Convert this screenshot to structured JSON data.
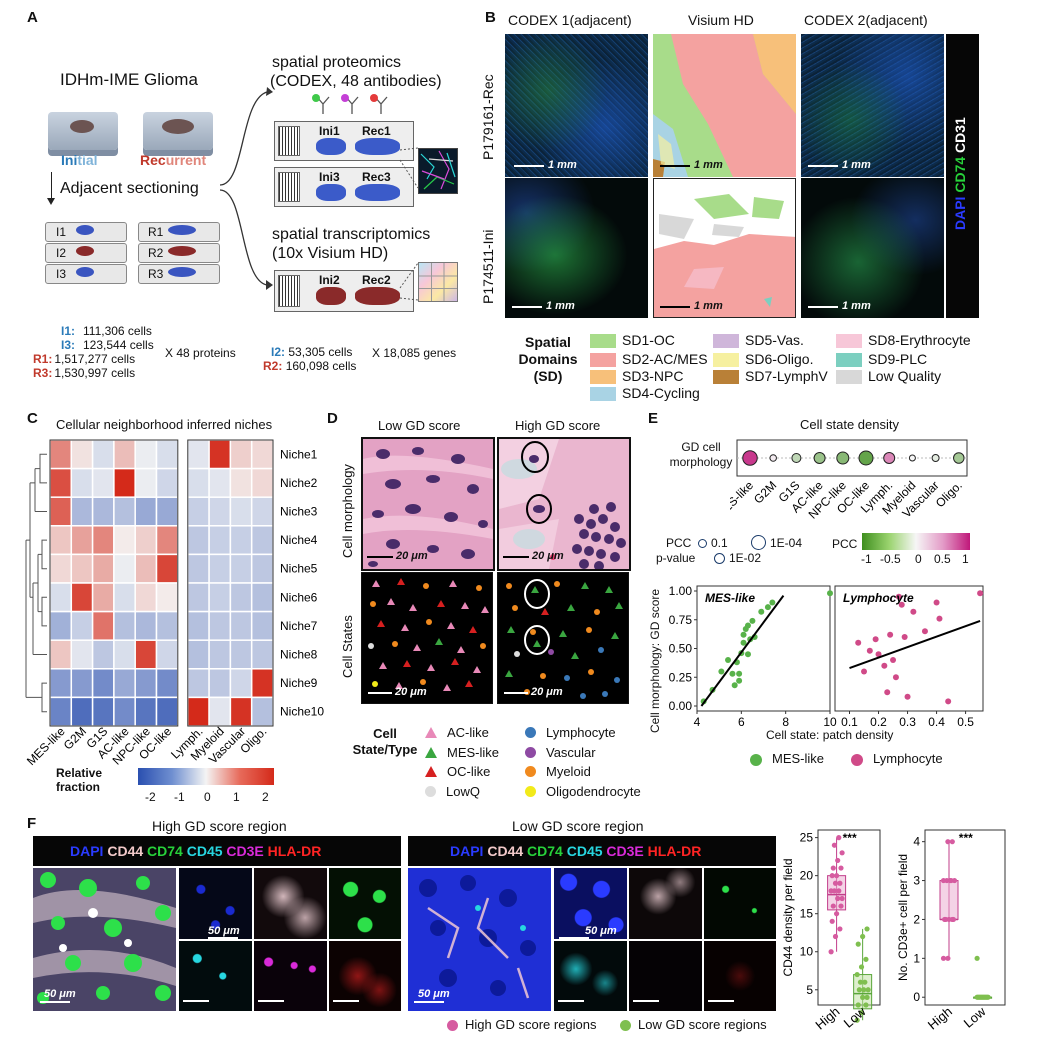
{
  "panels": {
    "a": "A",
    "b": "B",
    "c": "C",
    "d": "D",
    "e": "E",
    "f": "F"
  },
  "panelA": {
    "glioma_title": "IDHm-IME Glioma",
    "initial": {
      "part1": "Ini",
      "part2": "tial"
    },
    "recurrent": {
      "part1": "Rec",
      "part2": "urrent"
    },
    "adjacent_sectioning": "Adjacent sectioning",
    "slides_left": [
      "I1",
      "I2",
      "I3"
    ],
    "slides_right": [
      "R1",
      "R2",
      "R3"
    ],
    "proteomics_title": "spatial proteomics",
    "proteomics_sub": "(CODEX, 48 antibodies)",
    "transcriptomics_title": "spatial transcriptomics",
    "transcriptomics_sub": "(10x Visium HD)",
    "chip1": [
      "Ini1",
      "Rec1"
    ],
    "chip2": [
      "Ini3",
      "Rec3"
    ],
    "chip3": [
      "Ini2",
      "Rec2"
    ],
    "counts_left": [
      {
        "label": "I1:",
        "value": "111,306 cells",
        "color": "#2a7ab8"
      },
      {
        "label": "I3:",
        "value": "123,544 cells",
        "color": "#2a7ab8"
      },
      {
        "label": "R1:",
        "value": "1,517,277 cells",
        "color": "#c0392b"
      },
      {
        "label": "R3:",
        "value": "1,530,997 cells",
        "color": "#c0392b"
      }
    ],
    "x_proteins": "X 48 proteins",
    "counts_right": [
      {
        "label": "I2:",
        "value": "53,305 cells",
        "color": "#2a7ab8"
      },
      {
        "label": "R2:",
        "value": "160,098 cells",
        "color": "#c0392b"
      }
    ],
    "x_genes": "X 18,085 genes"
  },
  "panelB": {
    "col_titles": [
      "CODEX 1(adjacent)",
      "Visium HD",
      "CODEX 2(adjacent)"
    ],
    "row_labels": [
      "P179161-Rec",
      "P174511-Ini"
    ],
    "scale": "1 mm",
    "stain": {
      "dapi": "DAPI",
      "cd74": "CD74",
      "cd31": "CD31"
    },
    "legend_title": [
      "Spatial",
      "Domains",
      "(SD)"
    ],
    "domains": [
      {
        "label": "SD1-OC",
        "color": "#a8dc8a"
      },
      {
        "label": "SD2-AC/MES",
        "color": "#f4a2a0"
      },
      {
        "label": "SD3-NPC",
        "color": "#f7c07a"
      },
      {
        "label": "SD4-Cycling",
        "color": "#a9d3e4"
      },
      {
        "label": "SD5-Vas.",
        "color": "#cfb6da"
      },
      {
        "label": "SD6-Oligo.",
        "color": "#f6f0a0"
      },
      {
        "label": "SD7-LymphV",
        "color": "#b98037"
      },
      {
        "label": "SD8-Erythrocyte",
        "color": "#f7c7d8"
      },
      {
        "label": "SD9-PLC",
        "color": "#7ccfc0"
      },
      {
        "label": "Low Quality",
        "color": "#d8d8d8"
      }
    ]
  },
  "panelC": {
    "title": "Cellular neighborhood inferred niches",
    "niches": [
      "Niche1",
      "Niche2",
      "Niche3",
      "Niche4",
      "Niche5",
      "Niche6",
      "Niche7",
      "Niche8",
      "Niche9",
      "Niche10"
    ],
    "cols_left": [
      "MES-like",
      "G2M",
      "G1S",
      "AC-like",
      "NPC-like",
      "OC-like"
    ],
    "cols_right": [
      "Lymph.",
      "Myeloid",
      "Vascular",
      "Oligo."
    ],
    "matrix_left": [
      [
        1.2,
        0.2,
        -0.3,
        0.6,
        -0.1,
        -0.3
      ],
      [
        1.8,
        -0.3,
        -0.2,
        2.2,
        -0.1,
        -0.4
      ],
      [
        1.6,
        -0.8,
        -0.8,
        -0.7,
        -1.0,
        -1.0
      ],
      [
        0.5,
        0.9,
        1.2,
        0.1,
        0.4,
        1.2
      ],
      [
        0.3,
        0.5,
        0.8,
        -0.1,
        0.6,
        1.9
      ],
      [
        -0.3,
        1.9,
        0.8,
        -0.3,
        0.3,
        0.1
      ],
      [
        -0.9,
        -0.5,
        1.4,
        -0.7,
        -0.8,
        -0.7
      ],
      [
        0.5,
        -0.2,
        -0.6,
        -0.3,
        1.9,
        -0.4
      ],
      [
        -1.2,
        -1.2,
        -1.4,
        -1.0,
        -1.2,
        -1.4
      ],
      [
        -1.5,
        -1.8,
        -1.7,
        -1.4,
        -1.7,
        -1.8
      ]
    ],
    "matrix_right": [
      [
        -0.2,
        2.1,
        0.4,
        0.3
      ],
      [
        -0.3,
        -0.2,
        0.2,
        0.3
      ],
      [
        -0.5,
        -0.4,
        -0.3,
        -0.4
      ],
      [
        -0.6,
        -0.5,
        -0.5,
        -0.6
      ],
      [
        -0.6,
        -0.5,
        -0.5,
        -0.6
      ],
      [
        -0.6,
        -0.5,
        -0.6,
        -0.7
      ],
      [
        -0.7,
        -0.6,
        -0.6,
        -0.7
      ],
      [
        -0.7,
        -0.6,
        -0.6,
        -0.6
      ],
      [
        -0.6,
        -0.6,
        -0.4,
        2.1
      ],
      [
        2.2,
        -0.2,
        2.1,
        -0.7
      ]
    ],
    "colorbar_title": [
      "Relative",
      "fraction"
    ],
    "colorbar_ticks": [
      "-2",
      "-1",
      "0",
      "1",
      "2"
    ]
  },
  "panelD": {
    "col_titles": [
      "Low GD score",
      "High GD score"
    ],
    "row_labels": [
      "Cell morphology",
      "Cell States"
    ],
    "scale": "20 μm",
    "legend_title": [
      "Cell",
      "State/Type"
    ],
    "legend_items": [
      {
        "label": "AC-like",
        "shape": "triangle",
        "color": "#e889b8"
      },
      {
        "label": "Lymphocyte",
        "shape": "circle",
        "color": "#3a78b8"
      },
      {
        "label": "MES-like",
        "shape": "triangle",
        "color": "#3aa640"
      },
      {
        "label": "Vascular",
        "shape": "circle",
        "color": "#8e4aa3"
      },
      {
        "label": "OC-like",
        "shape": "triangle",
        "color": "#d62020"
      },
      {
        "label": "Myeloid",
        "shape": "circle",
        "color": "#f08a1e"
      },
      {
        "label": "LowQ",
        "shape": "circle",
        "color": "#dddddd"
      },
      {
        "label": "Oligodendrocyte",
        "shape": "circle",
        "color": "#f2ea1a"
      }
    ]
  },
  "panelE": {
    "title": "Cell state density",
    "row_label": [
      "GD cell",
      "morphology"
    ],
    "categories": [
      "MES-like",
      "G2M",
      "G1S",
      "AC-like",
      "NPC-like",
      "OC-like",
      "Lymph.",
      "Myeloid",
      "Vascular",
      "Oligo."
    ],
    "pcc_values": [
      0.85,
      0.05,
      -0.3,
      -0.5,
      -0.6,
      -0.8,
      0.5,
      0.0,
      -0.1,
      -0.45
    ],
    "pcc_legend": {
      "title": "PCC",
      "v1": "0.1",
      "v2": "1E-04"
    },
    "pvalue_legend": {
      "title": "p-value",
      "v1": "1E-02"
    },
    "colorbar": {
      "title": "PCC",
      "ticks": [
        "-1",
        "-0.5",
        "0",
        "0.5",
        "1"
      ]
    },
    "ylabel": "Cell morphology: GD score",
    "xlabel": "Cell state: patch density",
    "legend": [
      {
        "label": "MES-like",
        "color": "#58b24a"
      },
      {
        "label": "Lymphocyte",
        "color": "#d04a88"
      }
    ]
  },
  "chart_data": [
    {
      "type": "scatter",
      "title": "MES-like",
      "yticks": [
        "0.00",
        "0.25",
        "0.50",
        "0.75",
        "1.00"
      ],
      "xticks": [
        "4",
        "6",
        "8",
        "10"
      ],
      "xlim": [
        4,
        10
      ],
      "ylim": [
        0,
        1
      ],
      "x": [
        4.3,
        4.7,
        5.1,
        5.4,
        5.6,
        5.7,
        5.8,
        5.9,
        5.9,
        6.0,
        6.1,
        6.1,
        6.2,
        6.3,
        6.3,
        6.4,
        6.5,
        6.6,
        6.9,
        7.2,
        7.4,
        10.0
      ],
      "y": [
        0.04,
        0.14,
        0.3,
        0.4,
        0.28,
        0.18,
        0.38,
        0.28,
        0.22,
        0.46,
        0.62,
        0.55,
        0.67,
        0.7,
        0.45,
        0.58,
        0.74,
        0.6,
        0.82,
        0.86,
        0.9,
        0.98
      ],
      "fit": [
        [
          4.2,
          0.0
        ],
        [
          7.9,
          0.96
        ]
      ],
      "color": "#58b24a"
    },
    {
      "type": "scatter",
      "title": "Lymphocyte",
      "xticks": [
        "0.1",
        "0.2",
        "0.3",
        "0.4",
        "0.5"
      ],
      "xlim": [
        0.05,
        0.56
      ],
      "ylim": [
        0,
        1
      ],
      "x": [
        0.13,
        0.15,
        0.17,
        0.19,
        0.2,
        0.22,
        0.23,
        0.24,
        0.25,
        0.26,
        0.27,
        0.28,
        0.29,
        0.3,
        0.32,
        0.36,
        0.4,
        0.41,
        0.44,
        0.55
      ],
      "y": [
        0.55,
        0.3,
        0.48,
        0.58,
        0.45,
        0.35,
        0.12,
        0.62,
        0.4,
        0.25,
        0.95,
        0.88,
        0.6,
        0.08,
        0.82,
        0.65,
        0.9,
        0.76,
        0.04,
        0.98
      ],
      "fit": [
        [
          0.1,
          0.33
        ],
        [
          0.55,
          0.74
        ]
      ],
      "color": "#d04a88"
    },
    {
      "type": "box",
      "ylabel": "CD44 density per field",
      "categories": [
        "High",
        "Low"
      ],
      "yticks": [
        "5",
        "10",
        "15",
        "20",
        "25"
      ],
      "ylim": [
        3,
        26
      ],
      "high": [
        10,
        12,
        13,
        14,
        15,
        16,
        16,
        17,
        17,
        18,
        18,
        18,
        19,
        19,
        20,
        20,
        21,
        21,
        22,
        23,
        24,
        25
      ],
      "low": [
        1,
        2,
        3,
        3,
        4,
        4,
        5,
        5,
        5,
        6,
        6,
        7,
        8,
        9,
        11,
        12,
        13
      ],
      "box_high": {
        "q1": 15.5,
        "med": 17.5,
        "q3": 20,
        "lo": 10,
        "hi": 25
      },
      "box_low": {
        "q1": 2.5,
        "med": 4.5,
        "q3": 7,
        "lo": 1,
        "hi": 13
      },
      "sig": "***"
    },
    {
      "type": "box",
      "ylabel": "No. CD3e+ cell per field",
      "categories": [
        "High",
        "Low"
      ],
      "yticks": [
        "0",
        "1",
        "2",
        "3",
        "4"
      ],
      "ylim": [
        -0.2,
        4.3
      ],
      "high": [
        1,
        1,
        2,
        2,
        2,
        2,
        2,
        3,
        3,
        3,
        3,
        3,
        4,
        4
      ],
      "low": [
        0,
        0,
        0,
        0,
        0,
        0,
        0,
        0,
        0,
        0,
        0,
        1
      ],
      "box_high": {
        "q1": 2,
        "med": 2,
        "q3": 3,
        "lo": 1,
        "hi": 4
      },
      "box_low": {
        "q1": 0,
        "med": 0,
        "q3": 0,
        "lo": 0,
        "hi": 0
      },
      "sig": "***"
    }
  ],
  "panelF": {
    "high_title": "High GD score region",
    "low_title": "Low GD score region",
    "markers": [
      {
        "label": "DAPI",
        "color": "#2a3bff"
      },
      {
        "label": "CD44",
        "color": "#f2c9c9"
      },
      {
        "label": "CD74",
        "color": "#27d13a"
      },
      {
        "label": "CD45",
        "color": "#27d7e0"
      },
      {
        "label": "CD3E",
        "color": "#d92ad9"
      },
      {
        "label": "HLA-DR",
        "color": "#ff2424"
      }
    ],
    "scale_large": "50 μm",
    "legend": [
      {
        "label": "High GD score regions",
        "color": "#d65ba0"
      },
      {
        "label": "Low GD score regions",
        "color": "#7fbf4f"
      }
    ]
  }
}
